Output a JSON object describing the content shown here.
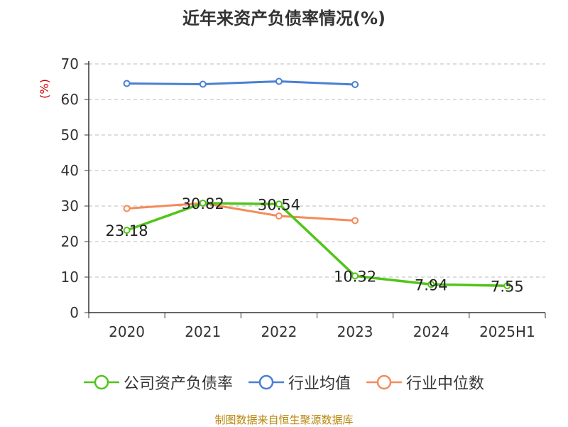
{
  "title": "近年来资产负债率情况(%)",
  "source": "制图数据来自恒生聚源数据库",
  "chart_data": {
    "type": "line",
    "ylabel": "(%)",
    "ylim": [
      0,
      70
    ],
    "yticks": [
      0,
      10,
      20,
      30,
      40,
      50,
      60,
      70
    ],
    "grid": true,
    "legend_position": "bottom",
    "categories": [
      "2020",
      "2021",
      "2022",
      "2023",
      "2024",
      "2025H1"
    ],
    "series": [
      {
        "name": "公司资产负债率",
        "color": "#52c41a",
        "show_labels": true,
        "values": [
          23.18,
          30.82,
          30.54,
          10.32,
          7.94,
          7.55
        ]
      },
      {
        "name": "行业均值",
        "color": "#4a7fd4",
        "show_labels": false,
        "values": [
          64.5,
          64.3,
          65.1,
          64.2,
          null,
          null
        ]
      },
      {
        "name": "行业中位数",
        "color": "#f48b5a",
        "show_labels": false,
        "values": [
          29.3,
          30.8,
          27.2,
          25.9,
          null,
          null
        ]
      }
    ]
  }
}
